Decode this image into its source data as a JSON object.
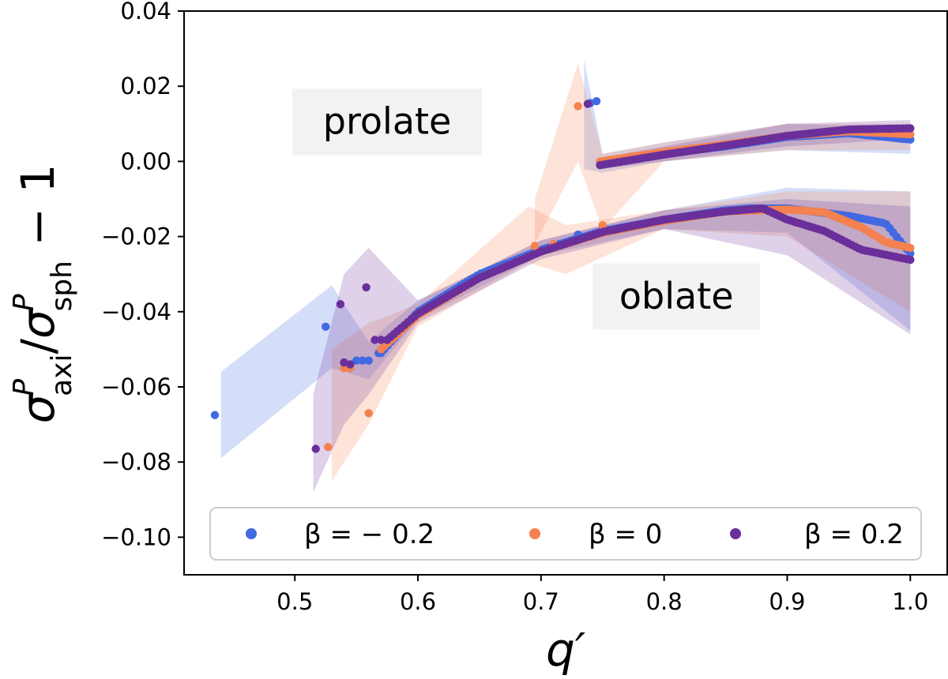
{
  "chart_data": {
    "type": "scatter",
    "xlabel": "q′",
    "ylabel": "σ^P_axi / σ^P_sph − 1",
    "ylabel_parts": {
      "sigma": "σ",
      "sup": "P",
      "sub_num": "axi",
      "slash": "/",
      "sub_den": "sph",
      "minus_one": " − 1"
    },
    "xlim": [
      0.41,
      1.03
    ],
    "ylim": [
      -0.11,
      0.04
    ],
    "x_ticks": [
      0.5,
      0.6,
      0.7,
      0.8,
      0.9,
      1.0
    ],
    "x_tick_labels": [
      "0.5",
      "0.6",
      "0.7",
      "0.8",
      "0.9",
      "1.0"
    ],
    "y_ticks": [
      -0.1,
      -0.08,
      -0.06,
      -0.04,
      -0.02,
      0.0,
      0.02,
      0.04
    ],
    "y_tick_labels": [
      "−0.10",
      "−0.08",
      "−0.06",
      "−0.04",
      "−0.02",
      "0.00",
      "0.02",
      "0.04"
    ],
    "grid": false,
    "legend_position": "bottom",
    "annotations": [
      {
        "text": "prolate",
        "x": 0.575,
        "y": 0.0105
      },
      {
        "text": "oblate",
        "x": 0.81,
        "y": -0.036
      }
    ],
    "series": [
      {
        "name": "β = − 0.2",
        "color": "#4169e1",
        "isolated_points": [
          [
            0.435,
            -0.0675
          ],
          [
            0.525,
            -0.044
          ],
          [
            0.55,
            -0.053
          ],
          [
            0.555,
            -0.053
          ],
          [
            0.56,
            -0.053
          ],
          [
            0.568,
            -0.051
          ],
          [
            0.73,
            -0.0195
          ],
          [
            0.74,
            0.0155
          ],
          [
            0.745,
            0.016
          ]
        ],
        "oblate_branch": {
          "x_start": 0.57,
          "x_end": 1.0,
          "knots": [
            [
              0.57,
              -0.051
            ],
            [
              0.6,
              -0.04
            ],
            [
              0.65,
              -0.03
            ],
            [
              0.7,
              -0.0235
            ],
            [
              0.75,
              -0.0185
            ],
            [
              0.8,
              -0.0155
            ],
            [
              0.85,
              -0.013
            ],
            [
              0.87,
              -0.0125
            ],
            [
              0.9,
              -0.0125
            ],
            [
              0.95,
              -0.0145
            ],
            [
              0.98,
              -0.0165
            ],
            [
              1.0,
              -0.0245
            ]
          ]
        },
        "prolate_branch": {
          "x_start": 0.748,
          "x_end": 1.0,
          "knots": [
            [
              0.748,
              -0.0005
            ],
            [
              0.8,
              0.002
            ],
            [
              0.85,
              0.004
            ],
            [
              0.9,
              0.0065
            ],
            [
              0.95,
              0.0075
            ],
            [
              1.0,
              0.0058
            ]
          ]
        },
        "band_oblate": {
          "x": [
            0.44,
            0.53,
            0.56,
            0.6,
            0.7,
            0.8,
            0.9,
            1.0
          ],
          "lower": [
            -0.079,
            -0.055,
            -0.058,
            -0.042,
            -0.025,
            -0.018,
            -0.019,
            -0.045
          ],
          "upper": [
            -0.056,
            -0.033,
            -0.048,
            -0.037,
            -0.021,
            -0.013,
            -0.007,
            -0.008
          ]
        },
        "band_prolate": {
          "x": [
            0.735,
            0.75,
            0.8,
            0.9,
            1.0
          ],
          "lower": [
            -0.002,
            -0.003,
            0.0,
            0.003,
            0.002
          ],
          "upper": [
            0.027,
            0.002,
            0.005,
            0.01,
            0.009
          ]
        }
      },
      {
        "name": "β = 0",
        "color": "#f4814f",
        "isolated_points": [
          [
            0.527,
            -0.076
          ],
          [
            0.54,
            -0.055
          ],
          [
            0.545,
            -0.055
          ],
          [
            0.56,
            -0.067
          ],
          [
            0.695,
            -0.0225
          ],
          [
            0.71,
            -0.022
          ],
          [
            0.73,
            0.0147
          ],
          [
            0.75,
            -0.017
          ]
        ],
        "oblate_branch": {
          "x_start": 0.57,
          "x_end": 1.0,
          "knots": [
            [
              0.57,
              -0.05
            ],
            [
              0.6,
              -0.041
            ],
            [
              0.65,
              -0.031
            ],
            [
              0.7,
              -0.024
            ],
            [
              0.75,
              -0.019
            ],
            [
              0.8,
              -0.0158
            ],
            [
              0.85,
              -0.0133
            ],
            [
              0.9,
              -0.0128
            ],
            [
              0.93,
              -0.0135
            ],
            [
              0.96,
              -0.0175
            ],
            [
              0.98,
              -0.0215
            ],
            [
              1.0,
              -0.023
            ]
          ]
        },
        "prolate_branch": {
          "x_start": 0.748,
          "x_end": 1.0,
          "knots": [
            [
              0.748,
              0.0
            ],
            [
              0.8,
              0.0025
            ],
            [
              0.85,
              0.0045
            ],
            [
              0.9,
              0.0068
            ],
            [
              0.95,
              0.008
            ],
            [
              1.0,
              0.0072
            ]
          ]
        },
        "band_oblate": {
          "x": [
            0.53,
            0.56,
            0.6,
            0.69,
            0.72,
            0.8,
            0.9,
            1.0
          ],
          "lower": [
            -0.085,
            -0.07,
            -0.044,
            -0.027,
            -0.03,
            -0.018,
            -0.02,
            -0.04
          ],
          "upper": [
            -0.05,
            -0.043,
            -0.038,
            -0.012,
            -0.017,
            -0.013,
            -0.008,
            -0.008
          ]
        },
        "band_prolate": {
          "x": [
            0.695,
            0.73,
            0.75,
            0.8,
            0.9,
            1.0
          ],
          "lower": [
            -0.022,
            0.0,
            -0.018,
            0.0,
            0.003,
            0.003
          ],
          "upper": [
            -0.01,
            0.026,
            0.002,
            0.005,
            0.01,
            0.01
          ]
        }
      },
      {
        "name": "β = 0.2",
        "color": "#6a2f9a",
        "isolated_points": [
          [
            0.517,
            -0.0765
          ],
          [
            0.537,
            -0.038
          ],
          [
            0.54,
            -0.0535
          ],
          [
            0.545,
            -0.054
          ],
          [
            0.558,
            -0.0335
          ],
          [
            0.565,
            -0.0475
          ],
          [
            0.57,
            -0.0475
          ],
          [
            0.738,
            0.0153
          ]
        ],
        "oblate_branch": {
          "x_start": 0.575,
          "x_end": 1.0,
          "knots": [
            [
              0.575,
              -0.0475
            ],
            [
              0.6,
              -0.0405
            ],
            [
              0.65,
              -0.031
            ],
            [
              0.7,
              -0.024
            ],
            [
              0.75,
              -0.0188
            ],
            [
              0.8,
              -0.0155
            ],
            [
              0.85,
              -0.0133
            ],
            [
              0.88,
              -0.0125
            ],
            [
              0.9,
              -0.0155
            ],
            [
              0.93,
              -0.0185
            ],
            [
              0.96,
              -0.0235
            ],
            [
              1.0,
              -0.0262
            ]
          ]
        },
        "prolate_branch": {
          "x_start": 0.748,
          "x_end": 1.0,
          "knots": [
            [
              0.748,
              -0.001
            ],
            [
              0.8,
              0.0018
            ],
            [
              0.85,
              0.0042
            ],
            [
              0.9,
              0.0068
            ],
            [
              0.95,
              0.0085
            ],
            [
              1.0,
              0.0088
            ]
          ]
        },
        "band_oblate": {
          "x": [
            0.515,
            0.54,
            0.56,
            0.6,
            0.7,
            0.8,
            0.9,
            1.0
          ],
          "lower": [
            -0.088,
            -0.07,
            -0.062,
            -0.043,
            -0.026,
            -0.018,
            -0.025,
            -0.046
          ],
          "upper": [
            -0.062,
            -0.03,
            -0.023,
            -0.037,
            -0.021,
            -0.013,
            -0.01,
            -0.012
          ]
        },
        "band_prolate": {
          "x": [
            0.75,
            0.8,
            0.9,
            1.0
          ],
          "lower": [
            -0.002,
            0.0,
            0.004,
            0.006
          ],
          "upper": [
            0.001,
            0.004,
            0.01,
            0.011
          ]
        }
      }
    ]
  }
}
